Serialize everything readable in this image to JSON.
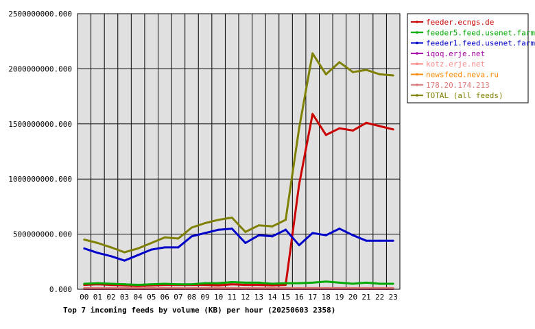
{
  "chart_data": {
    "type": "line",
    "title": "Top 7 incoming feeds by volume (KB) per hour (20250603 2358)",
    "categories": [
      "00",
      "01",
      "02",
      "03",
      "04",
      "05",
      "06",
      "07",
      "08",
      "09",
      "10",
      "11",
      "12",
      "13",
      "14",
      "15",
      "16",
      "17",
      "18",
      "19",
      "20",
      "21",
      "22",
      "23"
    ],
    "y_ticks": [
      "0.000",
      "500000000.000",
      "1000000000.000",
      "1500000000.000",
      "2000000000.000",
      "2500000000.000"
    ],
    "ylim": [
      0,
      2500000000
    ],
    "grid": true,
    "legend_position": "right",
    "plot_background": "#e0e0e0",
    "series": [
      {
        "name": "feeder.ecngs.de",
        "color": "#cc0000",
        "values": [
          40000000,
          45000000,
          40000000,
          35000000,
          30000000,
          35000000,
          40000000,
          40000000,
          40000000,
          40000000,
          35000000,
          45000000,
          40000000,
          40000000,
          35000000,
          40000000,
          950000000,
          1590000000,
          1400000000,
          1460000000,
          1440000000,
          1510000000,
          1480000000,
          1450000000
        ]
      },
      {
        "name": "feeder5.feed.usenet.farm",
        "color": "#00aa00",
        "values": [
          50000000,
          55000000,
          50000000,
          45000000,
          40000000,
          45000000,
          50000000,
          45000000,
          45000000,
          55000000,
          55000000,
          65000000,
          60000000,
          60000000,
          50000000,
          55000000,
          55000000,
          60000000,
          70000000,
          60000000,
          50000000,
          60000000,
          50000000,
          50000000
        ]
      },
      {
        "name": "feeder1.feed.usenet.farm",
        "color": "#0000cc",
        "values": [
          370000000,
          330000000,
          300000000,
          260000000,
          310000000,
          360000000,
          380000000,
          380000000,
          480000000,
          510000000,
          540000000,
          550000000,
          420000000,
          490000000,
          480000000,
          540000000,
          400000000,
          510000000,
          490000000,
          550000000,
          490000000,
          440000000,
          440000000,
          440000000
        ]
      },
      {
        "name": "iqoq.erje.net",
        "color": "#aa00aa",
        "values": [
          3000000,
          3000000,
          3000000,
          3000000,
          3000000,
          3000000,
          3000000,
          3000000,
          3000000,
          3000000,
          3000000,
          3000000,
          3000000,
          3000000,
          3000000,
          3000000,
          3000000,
          3000000,
          3000000,
          3000000,
          3000000,
          3000000,
          3000000,
          3000000
        ]
      },
      {
        "name": "kotz.erje.net",
        "color": "#ff8888",
        "values": [
          5000000,
          5000000,
          5000000,
          5000000,
          5000000,
          5000000,
          5000000,
          5000000,
          5000000,
          5000000,
          5000000,
          5000000,
          5000000,
          5000000,
          5000000,
          5000000,
          5000000,
          5000000,
          5000000,
          5000000,
          5000000,
          5000000,
          5000000,
          5000000
        ]
      },
      {
        "name": "newsfeed.neva.ru",
        "color": "#ff8800",
        "values": [
          8000000,
          8000000,
          8000000,
          8000000,
          8000000,
          8000000,
          8000000,
          8000000,
          8000000,
          8000000,
          8000000,
          8000000,
          8000000,
          8000000,
          8000000,
          8000000,
          8000000,
          8000000,
          8000000,
          8000000,
          8000000,
          8000000,
          8000000,
          8000000
        ]
      },
      {
        "name": "178.20.174.213",
        "color": "#dd7777",
        "values": [
          10000000,
          10000000,
          10000000,
          10000000,
          10000000,
          10000000,
          10000000,
          10000000,
          10000000,
          10000000,
          10000000,
          10000000,
          10000000,
          10000000,
          10000000,
          10000000,
          10000000,
          10000000,
          10000000,
          10000000,
          10000000,
          10000000,
          10000000,
          10000000
        ]
      },
      {
        "name": "TOTAL (all feeds)",
        "color": "#808000",
        "values": [
          450000000,
          420000000,
          380000000,
          335000000,
          370000000,
          420000000,
          470000000,
          460000000,
          560000000,
          600000000,
          630000000,
          650000000,
          520000000,
          580000000,
          570000000,
          630000000,
          1460000000,
          2140000000,
          1950000000,
          2060000000,
          1970000000,
          1990000000,
          1950000000,
          1940000000
        ]
      }
    ]
  }
}
